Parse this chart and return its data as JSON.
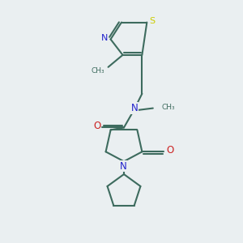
{
  "background_color": "#eaeff1",
  "bond_color": "#3d6b5e",
  "N_color": "#2222cc",
  "O_color": "#cc2222",
  "S_color": "#cccc00",
  "line_width": 1.5,
  "figsize": [
    3.0,
    3.0
  ],
  "dpi": 100,
  "xlim": [
    0,
    10
  ],
  "ylim": [
    0,
    10
  ]
}
